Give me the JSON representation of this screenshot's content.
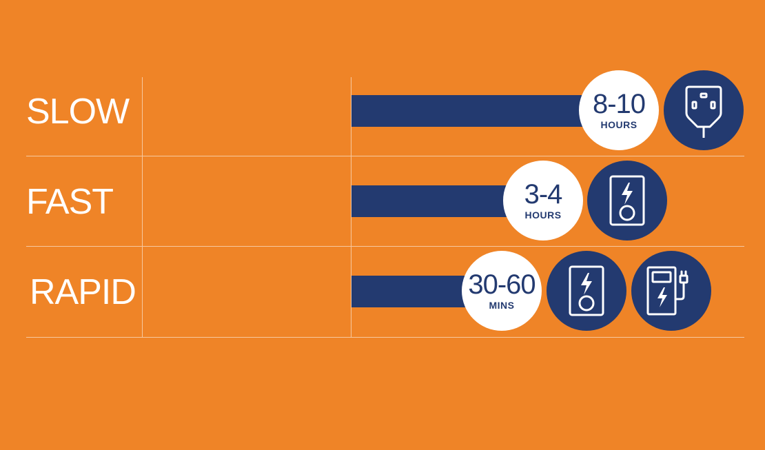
{
  "colors": {
    "background": "#ef8427",
    "bar": "#233a70",
    "badge_bg": "#ffffff",
    "badge_text": "#233a70",
    "icon_circle": "#233a70",
    "grid": "#f7c9a0"
  },
  "chart_data": {
    "type": "bar",
    "orientation": "horizontal",
    "categories": [
      "SLOW",
      "FAST",
      "RAPID"
    ],
    "value_labels": [
      {
        "value": "8-10",
        "unit": "HOURS"
      },
      {
        "value": "3-4",
        "unit": "HOURS"
      },
      {
        "value": "30-60",
        "unit": "MINS"
      }
    ],
    "icons": [
      [
        "plug-socket-icon"
      ],
      [
        "wall-charger-icon"
      ],
      [
        "wall-charger-icon",
        "charging-station-icon"
      ]
    ],
    "title": "",
    "xlabel": "",
    "ylabel": "",
    "grid": true
  }
}
